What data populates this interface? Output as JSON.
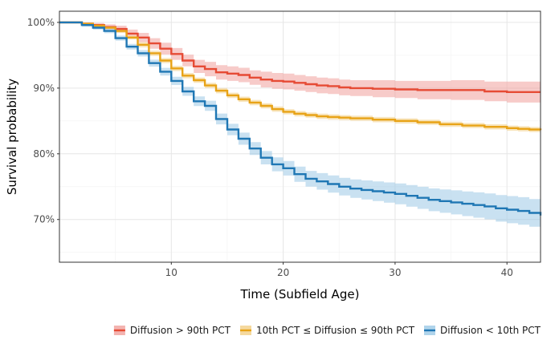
{
  "chart_data": {
    "type": "line",
    "title": "",
    "xlabel": "Time (Subfield Age)",
    "ylabel": "Survival probability",
    "xlim": [
      0,
      43
    ],
    "ylim": [
      63.5,
      101.7
    ],
    "x_ticks": [
      10,
      20,
      30,
      40
    ],
    "x_tick_labels": [
      "10",
      "20",
      "30",
      "40"
    ],
    "y_ticks": [
      70,
      80,
      90,
      100
    ],
    "y_tick_labels": [
      "70%",
      "80%",
      "90%",
      "100%"
    ],
    "grid": true,
    "legend_position": "bottom",
    "series": [
      {
        "name": "Diffusion > 90th PCT",
        "color": "#E64B35",
        "fill_color": "#F0A09C",
        "x": [
          0,
          2,
          3,
          4,
          5,
          6,
          7,
          8,
          9,
          10,
          11,
          12,
          13,
          14,
          15,
          16,
          17,
          18,
          19,
          20,
          21,
          22,
          23,
          24,
          25,
          26,
          28,
          30,
          32,
          35,
          38,
          40,
          43
        ],
        "y": [
          100,
          99.8,
          99.6,
          99.3,
          99.0,
          98.3,
          97.7,
          96.8,
          96.0,
          95.2,
          94.2,
          93.3,
          92.9,
          92.4,
          92.2,
          92.0,
          91.6,
          91.3,
          91.1,
          91.0,
          90.8,
          90.6,
          90.4,
          90.3,
          90.1,
          90.0,
          89.9,
          89.8,
          89.7,
          89.7,
          89.5,
          89.4,
          89.4
        ],
        "lower": [
          100,
          99.6,
          99.3,
          98.9,
          98.5,
          97.7,
          97.0,
          96.0,
          95.1,
          94.3,
          93.3,
          92.3,
          91.8,
          91.3,
          91.1,
          90.9,
          90.5,
          90.1,
          89.9,
          89.8,
          89.6,
          89.4,
          89.2,
          89.1,
          88.9,
          88.8,
          88.6,
          88.5,
          88.3,
          88.2,
          88.0,
          87.8,
          87.6
        ],
        "upper": [
          100,
          100,
          99.9,
          99.7,
          99.5,
          98.9,
          98.4,
          97.6,
          96.9,
          96.1,
          95.1,
          94.3,
          94.0,
          93.5,
          93.3,
          93.1,
          92.7,
          92.5,
          92.3,
          92.2,
          92.0,
          91.8,
          91.6,
          91.5,
          91.3,
          91.2,
          91.2,
          91.1,
          91.1,
          91.2,
          91.0,
          91.0,
          91.2
        ]
      },
      {
        "name": "10th PCT ≤ Diffusion ≤ 90th PCT",
        "color": "#E8A317",
        "fill_color": "#F2CF87",
        "x": [
          0,
          2,
          3,
          4,
          5,
          6,
          7,
          8,
          9,
          10,
          11,
          12,
          13,
          14,
          15,
          16,
          17,
          18,
          19,
          20,
          21,
          22,
          23,
          24,
          25,
          26,
          28,
          30,
          32,
          34,
          36,
          38,
          40,
          41,
          42,
          43
        ],
        "y": [
          100,
          99.8,
          99.5,
          99.2,
          98.7,
          97.7,
          96.6,
          95.3,
          94.2,
          93.0,
          91.9,
          91.2,
          90.4,
          89.6,
          88.9,
          88.3,
          87.8,
          87.3,
          86.8,
          86.4,
          86.1,
          85.9,
          85.7,
          85.6,
          85.5,
          85.4,
          85.2,
          85.0,
          84.8,
          84.5,
          84.3,
          84.1,
          83.9,
          83.8,
          83.7,
          83.6
        ],
        "lower": [
          100,
          99.7,
          99.3,
          99.0,
          98.4,
          97.4,
          96.2,
          94.9,
          93.8,
          92.6,
          91.5,
          90.8,
          90.0,
          89.2,
          88.5,
          87.9,
          87.4,
          86.9,
          86.4,
          86.0,
          85.7,
          85.5,
          85.3,
          85.2,
          85.1,
          85.0,
          84.8,
          84.6,
          84.4,
          84.1,
          83.9,
          83.7,
          83.5,
          83.4,
          83.3,
          83.2
        ],
        "upper": [
          100,
          99.9,
          99.7,
          99.4,
          99.0,
          98.0,
          97.0,
          95.7,
          94.6,
          93.4,
          92.3,
          91.6,
          90.8,
          90.0,
          89.3,
          88.7,
          88.2,
          87.7,
          87.2,
          86.8,
          86.5,
          86.3,
          86.1,
          86.0,
          85.9,
          85.8,
          85.6,
          85.4,
          85.2,
          84.9,
          84.7,
          84.5,
          84.3,
          84.2,
          84.1,
          84.0
        ]
      },
      {
        "name": "Diffusion < 10th PCT",
        "color": "#1F77B4",
        "fill_color": "#9CC9E6",
        "x": [
          0,
          2,
          3,
          4,
          5,
          6,
          7,
          8,
          9,
          10,
          11,
          12,
          13,
          14,
          15,
          16,
          17,
          18,
          19,
          20,
          21,
          22,
          23,
          24,
          25,
          26,
          27,
          28,
          29,
          30,
          31,
          32,
          33,
          34,
          35,
          36,
          37,
          38,
          39,
          40,
          41,
          42,
          43
        ],
        "y": [
          100,
          99.6,
          99.2,
          98.7,
          97.6,
          96.3,
          95.3,
          93.8,
          92.5,
          91.1,
          89.5,
          88.0,
          87.3,
          85.3,
          83.7,
          82.3,
          80.8,
          79.4,
          78.4,
          77.8,
          76.9,
          76.2,
          75.8,
          75.4,
          75.0,
          74.7,
          74.5,
          74.3,
          74.1,
          73.9,
          73.6,
          73.3,
          73.0,
          72.8,
          72.6,
          72.4,
          72.2,
          72.0,
          71.7,
          71.5,
          71.3,
          71.0,
          70.6
        ]
      }
    ]
  },
  "legend": {
    "items": [
      {
        "label": "Diffusion > 90th PCT",
        "color": "#E64B35",
        "fill_color": "#F0A09C"
      },
      {
        "label": "10th PCT ≤ Diffusion ≤ 90th PCT",
        "color": "#E8A317",
        "fill_color": "#F2CF87"
      },
      {
        "label": "Diffusion < 10th PCT",
        "color": "#1F77B4",
        "fill_color": "#9CC9E6"
      }
    ]
  }
}
